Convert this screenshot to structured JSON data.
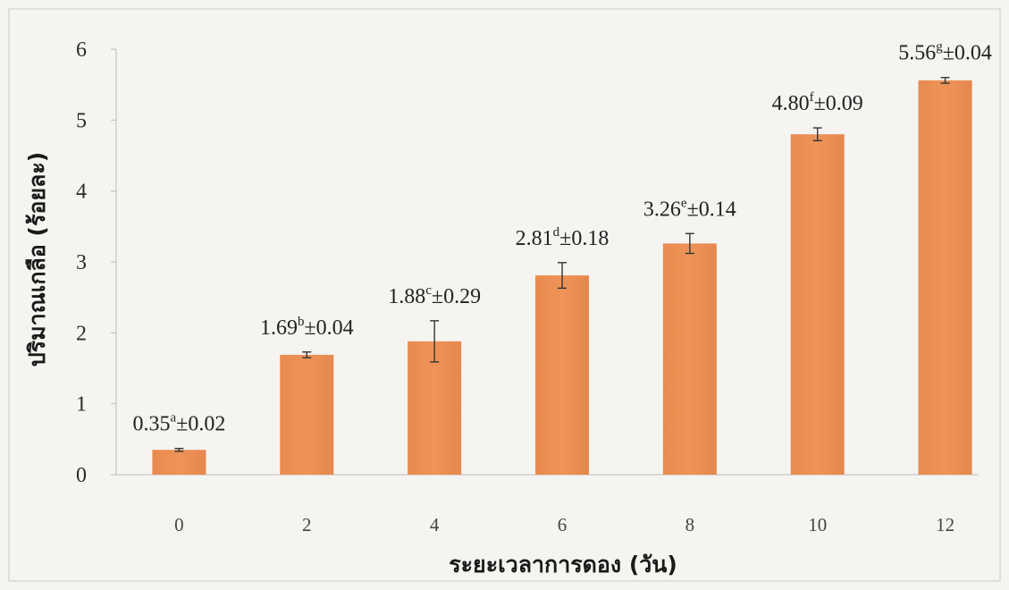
{
  "chart_data": {
    "type": "bar",
    "title": "",
    "xlabel": "ระยะเวลาการดอง (วัน)",
    "ylabel": "ปริมาณเกลือ (ร้อยละ)",
    "categories": [
      "0",
      "2",
      "4",
      "6",
      "8",
      "10",
      "12"
    ],
    "values": [
      0.35,
      1.69,
      1.88,
      2.81,
      3.26,
      4.8,
      5.56
    ],
    "errors": [
      0.02,
      0.04,
      0.29,
      0.18,
      0.14,
      0.09,
      0.04
    ],
    "letters": [
      "a",
      "b",
      "c",
      "d",
      "e",
      "f",
      "g"
    ],
    "data_labels": [
      {
        "value": "0.35",
        "letter": "a",
        "error": "±0.02"
      },
      {
        "value": "1.69",
        "letter": "b",
        "error": "±0.04"
      },
      {
        "value": "1.88",
        "letter": "c",
        "error": "±0.29"
      },
      {
        "value": "2.81",
        "letter": "d",
        "error": "±0.18"
      },
      {
        "value": "3.26",
        "letter": "e",
        "error": "±0.14"
      },
      {
        "value": "4.80",
        "letter": "f",
        "error": "±0.09"
      },
      {
        "value": "5.56",
        "letter": "g",
        "error": "±0.04"
      }
    ],
    "ylim": [
      0,
      6
    ],
    "yticks": [
      "0",
      "1",
      "2",
      "3",
      "4",
      "5",
      "6"
    ],
    "grid": false,
    "legend": "none",
    "bar_color": "#e8894f"
  }
}
